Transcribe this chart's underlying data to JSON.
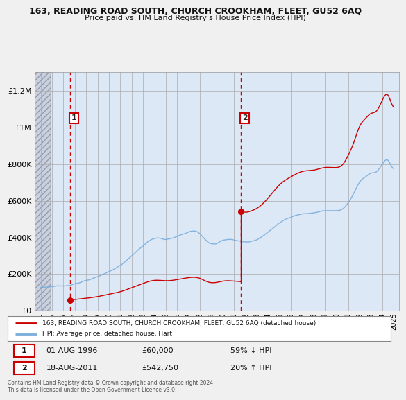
{
  "title": "163, READING ROAD SOUTH, CHURCH CROOKHAM, FLEET, GU52 6AQ",
  "subtitle": "Price paid vs. HM Land Registry's House Price Index (HPI)",
  "bg_color": "#f0f0f0",
  "plot_bg_color": "#dce8f5",
  "legend_line1": "163, READING ROAD SOUTH, CHURCH CROOKHAM, FLEET, GU52 6AQ (detached house)",
  "legend_line2": "HPI: Average price, detached house, Hart",
  "footer": "Contains HM Land Registry data © Crown copyright and database right 2024.\nThis data is licensed under the Open Government Licence v3.0.",
  "transaction1": {
    "num": "1",
    "date": "01-AUG-1996",
    "price": "£60,000",
    "hpi": "59% ↓ HPI",
    "x": 1996.6
  },
  "transaction2": {
    "num": "2",
    "date": "18-AUG-2011",
    "price": "£542,750",
    "hpi": "20% ↑ HPI",
    "x": 2011.6
  },
  "ylim": [
    0,
    1300000
  ],
  "xlim": [
    1993.5,
    2025.5
  ],
  "yticks": [
    0,
    200000,
    400000,
    600000,
    800000,
    1000000,
    1200000
  ],
  "ytick_labels": [
    "£0",
    "£200K",
    "£400K",
    "£600K",
    "£800K",
    "£1M",
    "£1.2M"
  ],
  "price_color": "#cc0000",
  "hpi_color": "#7aaddc",
  "vline_color": "#cc0000",
  "hpi_base_year": 1996.6,
  "hpi_base_price": 60000,
  "sale1_year": 1996.6,
  "sale1_price": 60000,
  "sale2_year": 2011.6,
  "sale2_price": 542750
}
